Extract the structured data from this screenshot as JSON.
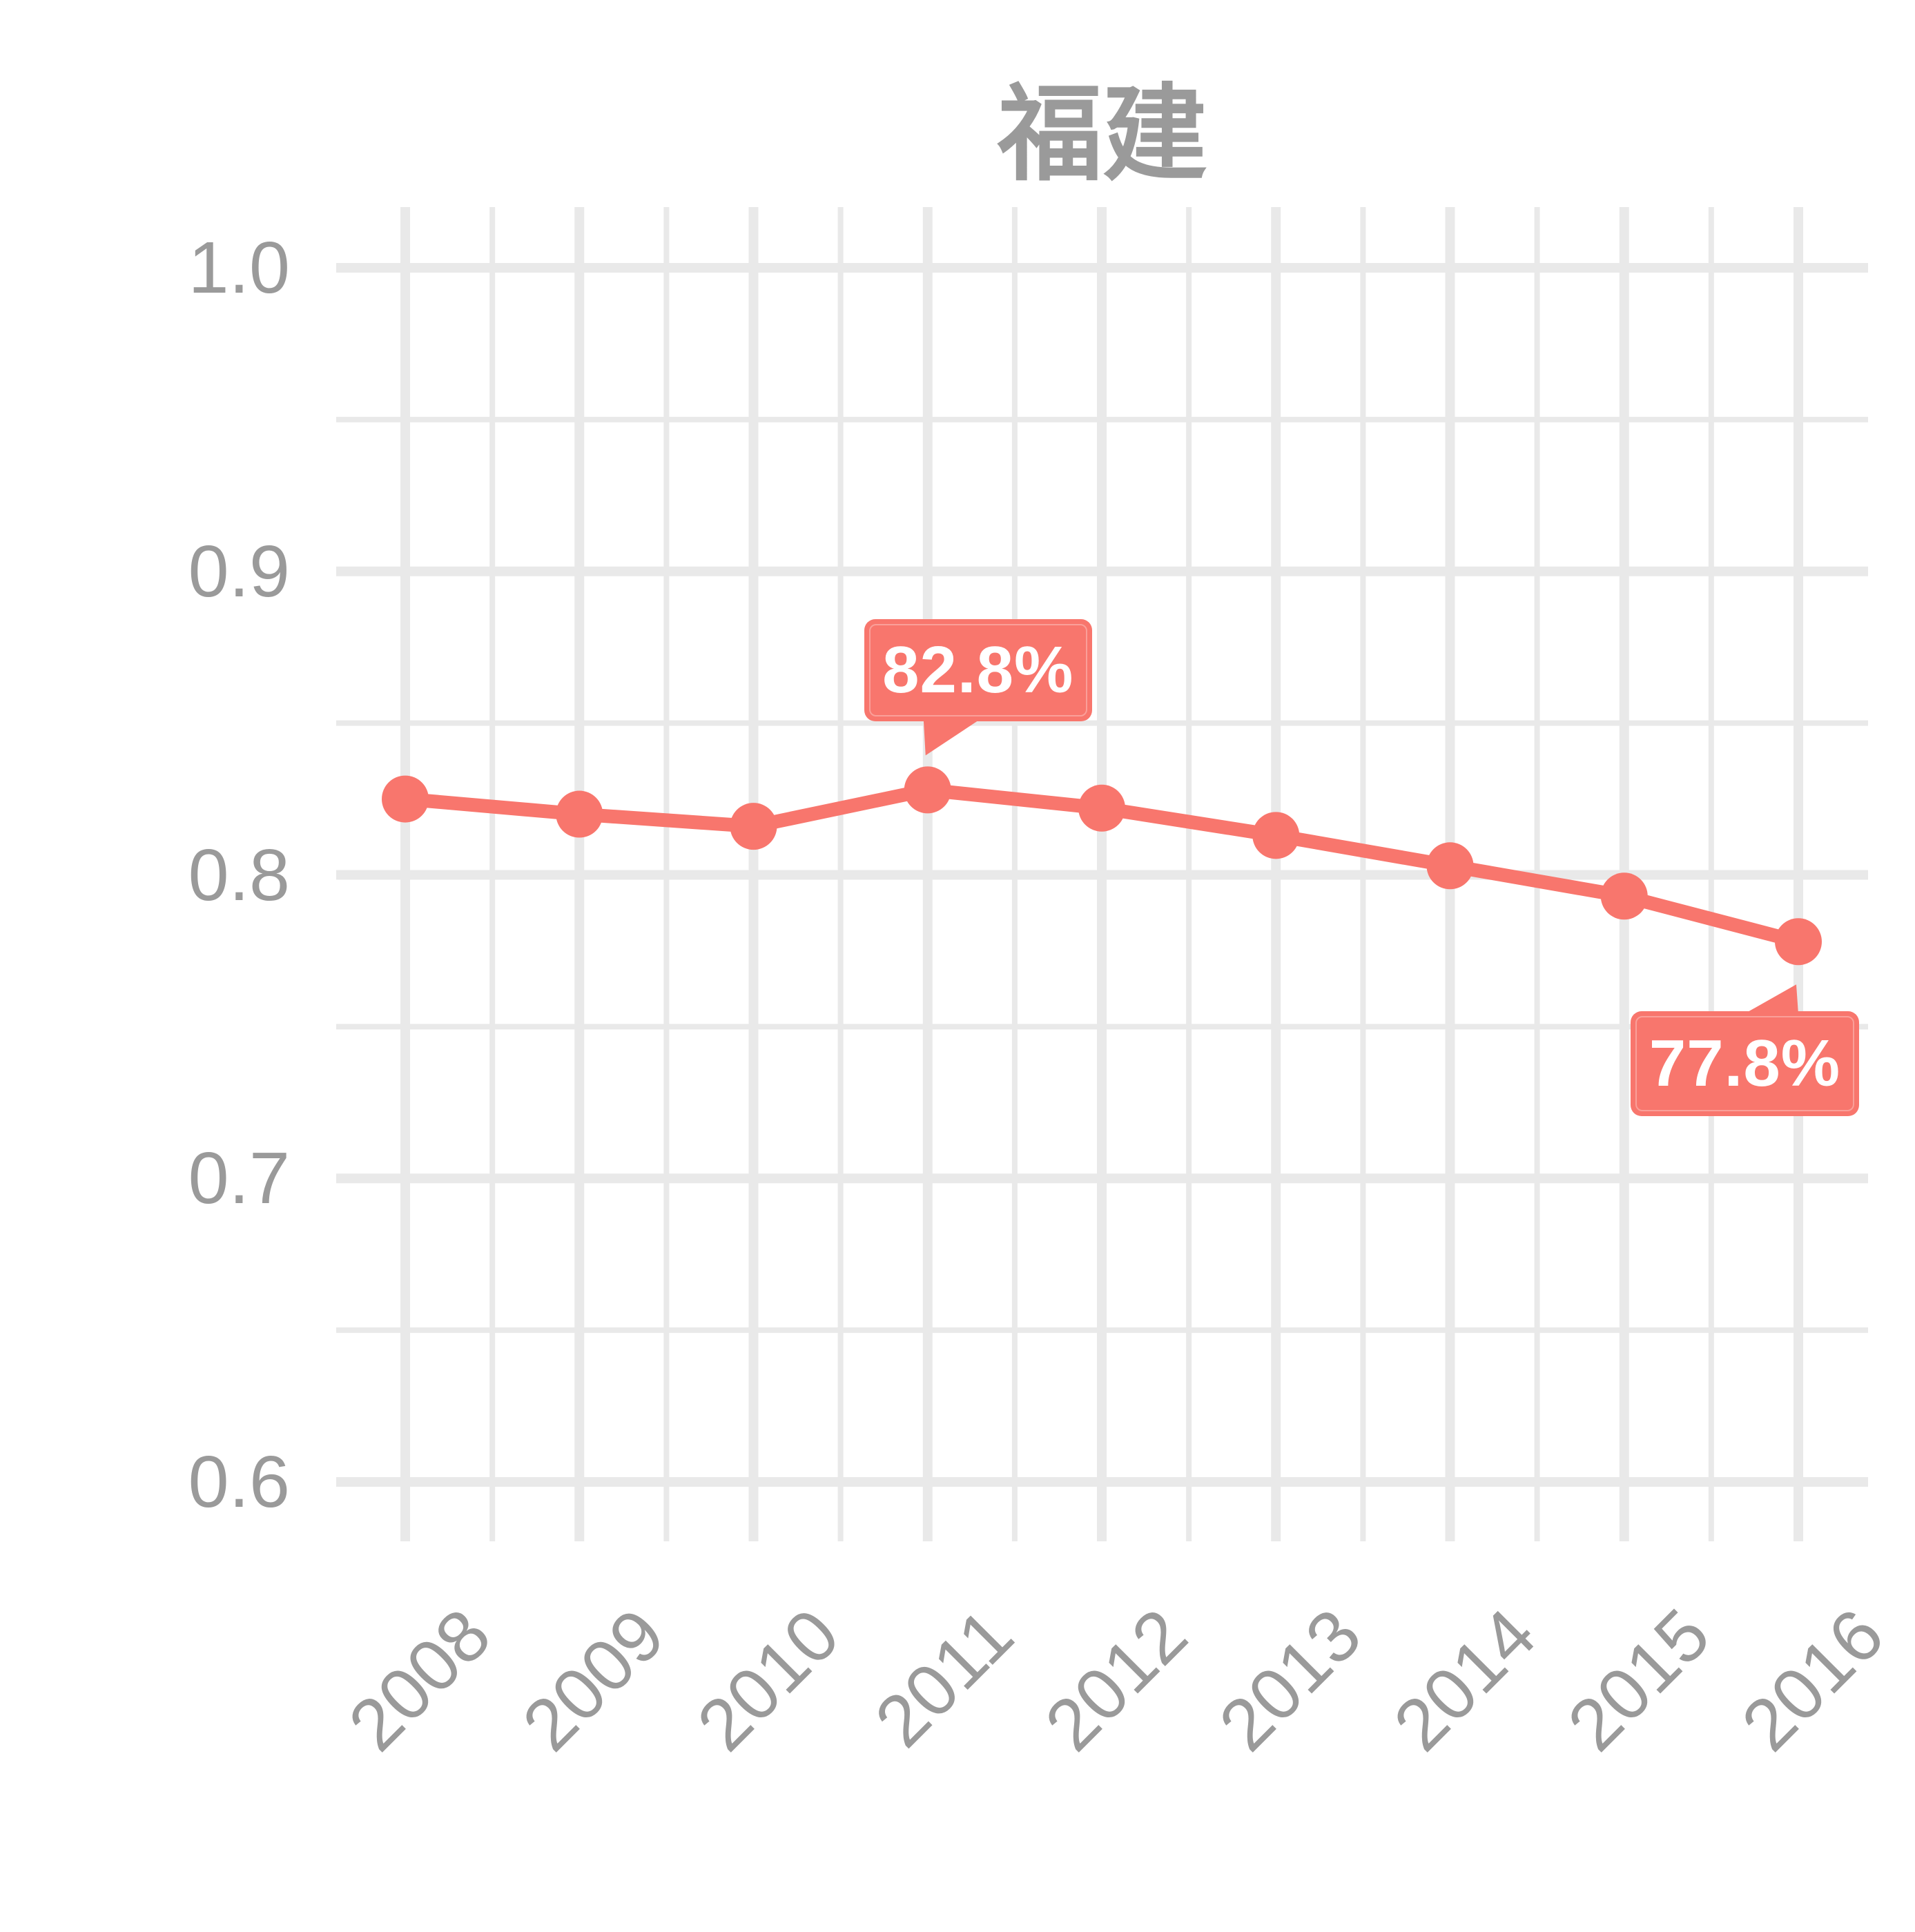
{
  "title": "福建",
  "colors": {
    "accent": "#f8766d",
    "grid": "#e9e9e9",
    "label": "#9a9a9a",
    "callout_text": "#ffffff",
    "background": "#ffffff"
  },
  "chart_data": {
    "type": "line",
    "title": "福建",
    "x": [
      2008,
      2009,
      2010,
      2011,
      2012,
      2013,
      2014,
      2015,
      2016
    ],
    "x_tick_labels": [
      "2008",
      "2009",
      "2010",
      "2011",
      "2012",
      "2013",
      "2014",
      "2015",
      "2016"
    ],
    "series": [
      {
        "name": "福建",
        "values": [
          0.825,
          0.82,
          0.816,
          0.828,
          0.822,
          0.813,
          0.803,
          0.793,
          0.778
        ]
      }
    ],
    "xlabel": "",
    "ylabel": "",
    "ylim": [
      0.6,
      1.0
    ],
    "y_major_ticks": [
      1.0,
      0.9,
      0.8,
      0.7,
      0.6
    ],
    "y_tick_labels": [
      "1.0",
      "0.9",
      "0.8",
      "0.7",
      "0.6"
    ],
    "y_minor_ticks": [
      0.95,
      0.85,
      0.75,
      0.65
    ],
    "grid": "major and minor, light gray, minor x at half-years",
    "legend": "none",
    "annotations": [
      {
        "x": 2011,
        "value": 0.828,
        "label": "82.8%",
        "placement": "above-left"
      },
      {
        "x": 2016,
        "value": 0.778,
        "label": "77.8%",
        "placement": "below-left"
      }
    ]
  }
}
